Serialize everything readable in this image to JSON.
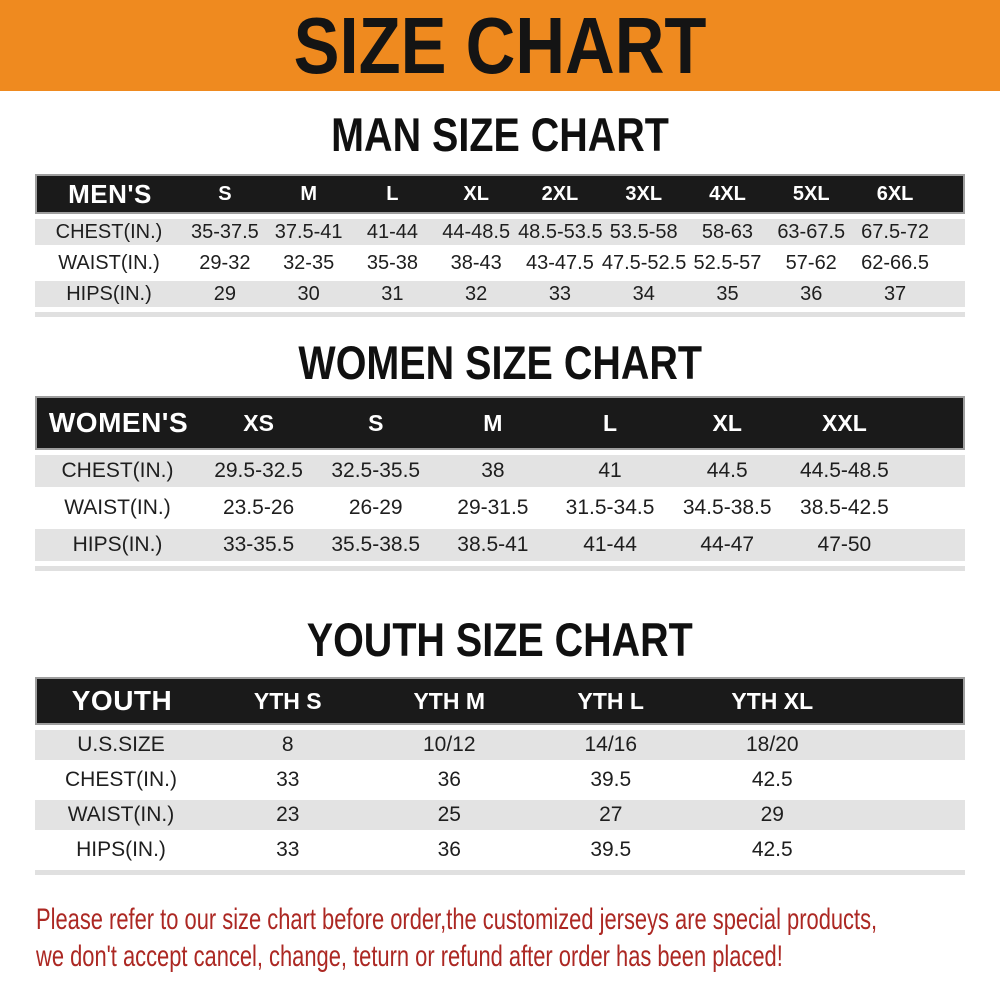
{
  "banner": {
    "title": "SIZE CHART",
    "bg_color": "#EF8A1F",
    "text_color": "#141414"
  },
  "sections": [
    {
      "id": "men",
      "title": "MAN SIZE CHART",
      "table": {
        "header_label": "MEN'S",
        "columns": [
          "S",
          "M",
          "L",
          "XL",
          "2XL",
          "3XL",
          "4XL",
          "5XL",
          "6XL"
        ],
        "rows": [
          {
            "label": "CHEST(IN.)",
            "values": [
              "35-37.5",
              "37.5-41",
              "41-44",
              "44-48.5",
              "48.5-53.5",
              "53.5-58",
              "58-63",
              "63-67.5",
              "67.5-72"
            ]
          },
          {
            "label": "WAIST(IN.)",
            "values": [
              "29-32",
              "32-35",
              "35-38",
              "38-43",
              "43-47.5",
              "47.5-52.5",
              "52.5-57",
              "57-62",
              "62-66.5"
            ]
          },
          {
            "label": "HIPS(IN.)",
            "values": [
              "29",
              "30",
              "31",
              "32",
              "33",
              "34",
              "35",
              "36",
              "37"
            ]
          }
        ]
      }
    },
    {
      "id": "women",
      "title": "WOMEN SIZE CHART",
      "table": {
        "header_label": "WOMEN'S",
        "columns": [
          "XS",
          "S",
          "M",
          "L",
          "XL",
          "XXL"
        ],
        "rows": [
          {
            "label": "CHEST(IN.)",
            "values": [
              "29.5-32.5",
              "32.5-35.5",
              "38",
              "41",
              "44.5",
              "44.5-48.5"
            ]
          },
          {
            "label": "WAIST(IN.)",
            "values": [
              "23.5-26",
              "26-29",
              "29-31.5",
              "31.5-34.5",
              "34.5-38.5",
              "38.5-42.5"
            ]
          },
          {
            "label": "HIPS(IN.)",
            "values": [
              "33-35.5",
              "35.5-38.5",
              "38.5-41",
              "41-44",
              "44-47",
              "47-50"
            ]
          }
        ]
      }
    },
    {
      "id": "youth",
      "title": "YOUTH SIZE CHART",
      "table": {
        "header_label": "YOUTH",
        "columns": [
          "YTH S",
          "YTH M",
          "YTH L",
          "YTH XL"
        ],
        "rows": [
          {
            "label": "U.S.SIZE",
            "values": [
              "8",
              "10/12",
              "14/16",
              "18/20"
            ]
          },
          {
            "label": "CHEST(IN.)",
            "values": [
              "33",
              "36",
              "39.5",
              "42.5"
            ]
          },
          {
            "label": "WAIST(IN.)",
            "values": [
              "23",
              "25",
              "27",
              "29"
            ]
          },
          {
            "label": "HIPS(IN.)",
            "values": [
              "33",
              "36",
              "39.5",
              "42.5"
            ]
          }
        ]
      }
    }
  ],
  "footer": {
    "text_color": "#AC2823",
    "lines": [
      "Please refer to our size chart before order,the customized jerseys are special products,",
      "we don't accept cancel, change, teturn or refund after order has been placed!"
    ]
  },
  "colors": {
    "header_bar_bg": "#1a1a1a",
    "header_bar_text": "#ffffff",
    "row_alt_bg": "#e3e3e3",
    "cell_text": "#1e1e1e"
  }
}
